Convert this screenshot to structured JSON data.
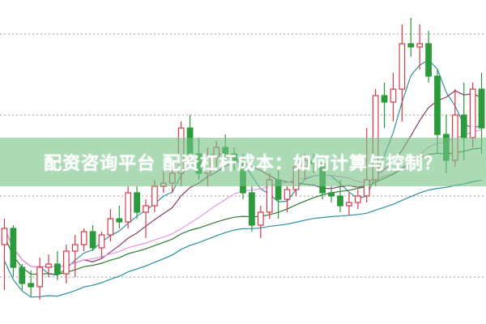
{
  "banner": {
    "title": "配资咨询平台 配资杠杆成本：如何计算与控制？"
  },
  "chart_data": {
    "type": "candlestick",
    "title": "",
    "grid": true,
    "grid_style": "dotted",
    "grid_levels": [
      12,
      37,
      62,
      87
    ],
    "colors": {
      "up": "#d9384a",
      "down": "#2a9a3a",
      "grid": "#999999",
      "banner": "#78c387"
    },
    "candles_ohlc": [
      [
        22,
        30,
        8,
        27
      ],
      [
        27,
        28,
        12,
        15
      ],
      [
        15,
        16,
        8,
        10
      ],
      [
        10,
        14,
        6,
        9
      ],
      [
        9,
        18,
        5,
        15
      ],
      [
        15,
        19,
        12,
        16
      ],
      [
        16,
        20,
        11,
        13
      ],
      [
        13,
        22,
        10,
        20
      ],
      [
        20,
        25,
        12,
        22
      ],
      [
        22,
        27,
        20,
        26
      ],
      [
        26,
        28,
        20,
        21
      ],
      [
        21,
        26,
        18,
        25
      ],
      [
        25,
        33,
        23,
        30
      ],
      [
        30,
        34,
        27,
        29
      ],
      [
        29,
        40,
        27,
        38
      ],
      [
        38,
        40,
        30,
        32
      ],
      [
        32,
        36,
        24,
        34
      ],
      [
        34,
        42,
        32,
        40
      ],
      [
        40,
        45,
        38,
        41
      ],
      [
        41,
        46,
        38,
        44
      ],
      [
        44,
        60,
        40,
        58
      ],
      [
        58,
        62,
        46,
        50
      ],
      [
        50,
        55,
        42,
        44
      ],
      [
        44,
        52,
        40,
        49
      ],
      [
        49,
        54,
        46,
        52
      ],
      [
        52,
        56,
        48,
        50
      ],
      [
        50,
        52,
        45,
        48
      ],
      [
        48,
        50,
        36,
        38
      ],
      [
        38,
        40,
        26,
        28
      ],
      [
        28,
        34,
        24,
        32
      ],
      [
        32,
        44,
        30,
        42
      ],
      [
        42,
        45,
        30,
        36
      ],
      [
        36,
        40,
        32,
        39
      ],
      [
        39,
        48,
        37,
        46
      ],
      [
        46,
        50,
        42,
        48
      ],
      [
        48,
        50,
        44,
        47
      ],
      [
        47,
        48,
        36,
        38
      ],
      [
        38,
        40,
        35,
        37
      ],
      [
        37,
        42,
        32,
        34
      ],
      [
        34,
        38,
        31,
        35
      ],
      [
        35,
        39,
        33,
        37
      ],
      [
        37,
        58,
        35,
        42
      ],
      [
        42,
        70,
        40,
        68
      ],
      [
        68,
        72,
        58,
        66
      ],
      [
        66,
        75,
        60,
        70
      ],
      [
        70,
        90,
        60,
        84
      ],
      [
        84,
        92,
        80,
        83
      ],
      [
        83,
        90,
        76,
        84
      ],
      [
        84,
        88,
        72,
        74
      ],
      [
        74,
        76,
        50,
        56
      ],
      [
        56,
        62,
        44,
        48
      ],
      [
        48,
        70,
        46,
        62
      ],
      [
        62,
        72,
        48,
        55
      ],
      [
        55,
        72,
        52,
        70
      ],
      [
        70,
        75,
        50,
        58
      ]
    ],
    "moving_averages": [
      {
        "period": 5,
        "color": "#3a8fa0"
      },
      {
        "period": 10,
        "color": "#8a3a6a"
      },
      {
        "period": 20,
        "color": "#e49ae0"
      },
      {
        "period": 30,
        "color": "#2e7a2e"
      },
      {
        "period": 60,
        "color": "#2a8f9a"
      }
    ]
  }
}
